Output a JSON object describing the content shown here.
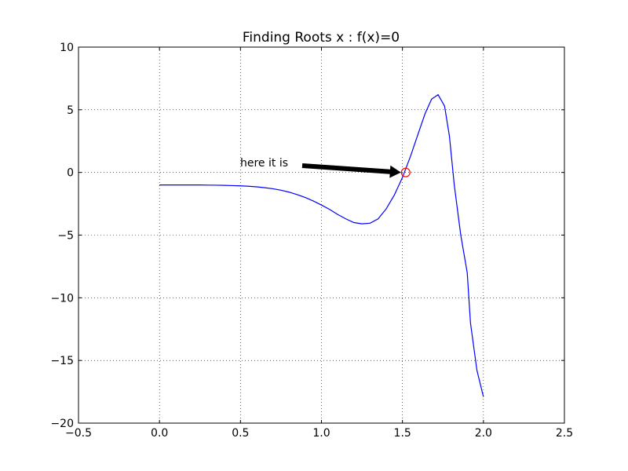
{
  "chart_data": {
    "type": "line",
    "title": "Finding Roots x : f(x)=0",
    "x": [
      0,
      0.05,
      0.1,
      0.15,
      0.2,
      0.25,
      0.3,
      0.35,
      0.4,
      0.45,
      0.5,
      0.55,
      0.6,
      0.65,
      0.7,
      0.75,
      0.8,
      0.85,
      0.9,
      0.95,
      1.0,
      1.05,
      1.1,
      1.15,
      1.2,
      1.25,
      1.3,
      1.35,
      1.4,
      1.45,
      1.5,
      1.55,
      1.6,
      1.64,
      1.68,
      1.72,
      1.76,
      1.79,
      1.82,
      1.86,
      1.9,
      1.92,
      1.96,
      2.0
    ],
    "values": [
      -1.0,
      -1.0,
      -1.0,
      -1.0,
      -1.0,
      -1.0,
      -1.01,
      -1.02,
      -1.03,
      -1.05,
      -1.07,
      -1.1,
      -1.15,
      -1.22,
      -1.3,
      -1.42,
      -1.57,
      -1.77,
      -2.0,
      -2.28,
      -2.6,
      -2.95,
      -3.35,
      -3.7,
      -4.0,
      -4.1,
      -4.05,
      -3.7,
      -2.9,
      -1.8,
      -0.4,
      1.3,
      3.2,
      4.7,
      5.85,
      6.2,
      5.3,
      2.9,
      -1.0,
      -5.0,
      -8.0,
      -12.0,
      -15.8,
      -17.9
    ],
    "color": "#0000ff",
    "root": {
      "x": 1.52,
      "y": 0,
      "color": "#ff0000"
    },
    "annotation": "here it is",
    "xlim": [
      -0.5,
      2.5
    ],
    "ylim": [
      -20,
      10
    ],
    "xticks": [
      {
        "value": -0.5,
        "label": "−0.5"
      },
      {
        "value": 0,
        "label": "0.0"
      },
      {
        "value": 0.5,
        "label": "0.5"
      },
      {
        "value": 1,
        "label": "1.0"
      },
      {
        "value": 1.5,
        "label": "1.5"
      },
      {
        "value": 2,
        "label": "2.0"
      },
      {
        "value": 2.5,
        "label": "2.5"
      }
    ],
    "yticks": [
      {
        "value": -20,
        "label": "−20"
      },
      {
        "value": -15,
        "label": "−15"
      },
      {
        "value": -10,
        "label": "−10"
      },
      {
        "value": -5,
        "label": "−5"
      },
      0,
      5,
      10
    ],
    "grid": true
  }
}
